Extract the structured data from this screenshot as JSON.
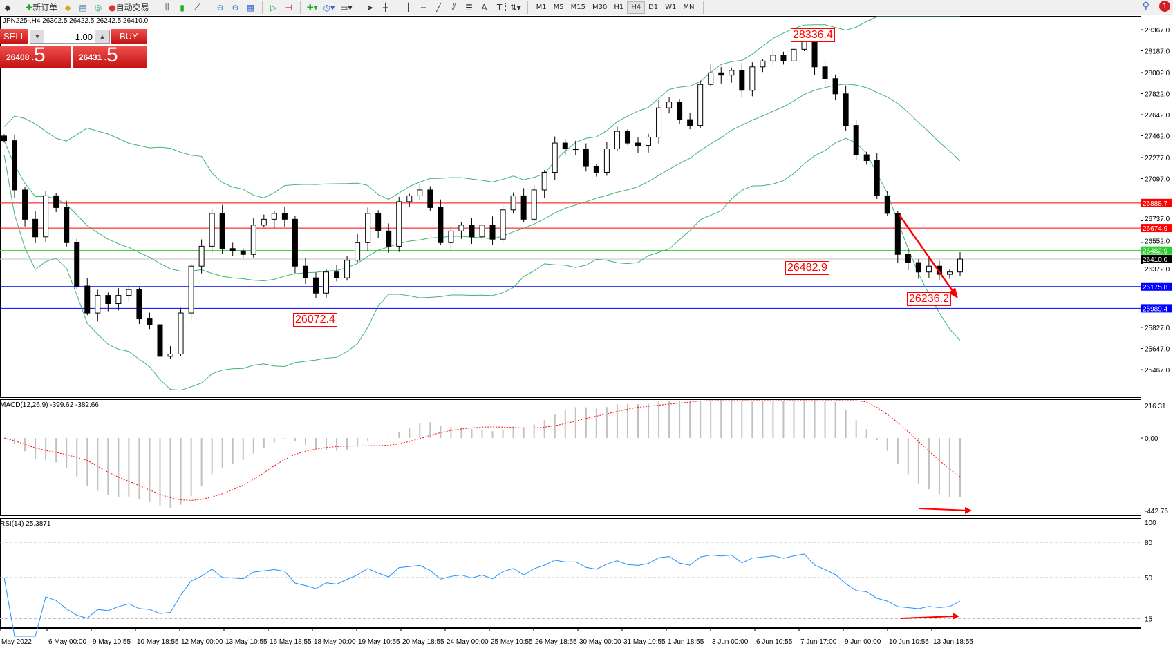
{
  "toolbar": {
    "new_order": "新订单",
    "auto_trading": "自动交易",
    "icons": [
      "new-order-icon",
      "history-icon",
      "data-icon",
      "signals-icon",
      "auto-trading-icon",
      "bar-chart-icon",
      "candlestick-icon",
      "line-chart-icon",
      "zoom-in-icon",
      "zoom-out-icon",
      "tile-icon",
      "auto-scroll-icon",
      "chart-shift-icon",
      "indicators-icon",
      "periods-icon",
      "templates-icon",
      "cursor-icon",
      "crosshair-icon",
      "vertical-line-icon",
      "horizontal-line-icon",
      "trendline-icon",
      "fibonacci-icon",
      "fibo-fan-icon",
      "text-icon",
      "label-icon",
      "arrows-icon"
    ],
    "text_tool": "A",
    "label_tool": "T",
    "timeframes": [
      "M1",
      "M5",
      "M15",
      "M30",
      "H1",
      "H4",
      "D1",
      "W1",
      "MN"
    ],
    "selected_timeframe": "H4",
    "notification_count": "1"
  },
  "chart": {
    "title": "JPN225-,H4  26302.5 26422.5 26242.5 26410.0",
    "trade": {
      "sell": "SELL",
      "buy": "BUY",
      "lot": "1.00",
      "bid_main": "26408",
      "bid_pip": "5",
      "ask_main": "26431",
      "ask_pip": "5"
    },
    "macd_label": "MACD(12,26,9) -399.62 -382.66",
    "rsi_label": "RSI(14) 25.3871",
    "annotations": [
      "28336.4",
      "26482.9",
      "26072.4",
      "26236.2"
    ],
    "colors": {
      "bands": "#3cb371",
      "resistance": "#ff0000",
      "support": "#0000ff",
      "level": "#32cd32",
      "bid": "#c0c0c0",
      "rsi": "#1e90ff",
      "macd_signal": "#ff0000",
      "macd_hist": "#c0c0c0"
    }
  },
  "chart_data": [
    {
      "type": "candlestick",
      "symbol": "JPN225-",
      "timeframe": "H4",
      "close": [
        27420,
        27000,
        26750,
        26600,
        26950,
        26850,
        26550,
        26180,
        25950,
        26100,
        26030,
        26100,
        26150,
        25900,
        25850,
        25580,
        25600,
        25950,
        26350,
        26520,
        26800,
        26500,
        26480,
        26450,
        26700,
        26750,
        26800,
        26750,
        26350,
        26250,
        26120,
        26300,
        26250,
        26400,
        26550,
        26800,
        26650,
        26520,
        26900,
        26950,
        27000,
        26850,
        26550,
        26650,
        26700,
        26600,
        26700,
        26580,
        26830,
        26950,
        26750,
        27000,
        27150,
        27400,
        27350,
        27350,
        27200,
        27150,
        27350,
        27500,
        27400,
        27380,
        27450,
        27700,
        27750,
        27600,
        27550,
        27900,
        28000,
        27980,
        28020,
        27850,
        28050,
        28100,
        28150,
        28100,
        28200,
        28280,
        28050,
        27950,
        27820,
        27550,
        27300,
        27250,
        26950,
        26800,
        26450,
        26380,
        26300,
        26350,
        26280,
        26300,
        26410
      ],
      "price_axis": [
        "28367.0",
        "28187.0",
        "28002.0",
        "27822.0",
        "27642.0",
        "27462.0",
        "27277.0",
        "27097.0",
        "26737.0",
        "26552.0",
        "26372.0",
        "25827.0",
        "25647.0",
        "25467.0"
      ],
      "ylim": [
        25467,
        28367
      ],
      "hlines": [
        {
          "value": "26888.7",
          "color": "#ff0000"
        },
        {
          "value": "26674.9",
          "color": "#ff0000"
        },
        {
          "value": "26482.9",
          "color": "#32cd32"
        },
        {
          "value": "26410.0",
          "color": "#000000"
        },
        {
          "value": "26175.8",
          "color": "#0000ff"
        },
        {
          "value": "25989.4",
          "color": "#0000ff"
        }
      ],
      "overlays": [
        "Bollinger Bands"
      ],
      "time_axis": [
        "May 2022",
        "6 May 00:00",
        "9 May 10:55",
        "10 May 18:55",
        "12 May 00:00",
        "13 May 10:55",
        "16 May 18:55",
        "18 May 00:00",
        "19 May 10:55",
        "20 May 18:55",
        "24 May 00:00",
        "25 May 10:55",
        "26 May 18:55",
        "30 May 00:00",
        "31 May 10:55",
        "1 Jun 18:55",
        "3 Jun 00:00",
        "6 Jun 10:55",
        "7 Jun 17:00",
        "9 Jun 00:00",
        "10 Jun 10:55",
        "13 Jun 18:55"
      ]
    },
    {
      "type": "bar",
      "name": "MACD(12,26,9)",
      "ylim": [
        -442.76,
        216.31
      ],
      "axis": [
        "216.31",
        "0.00",
        "-442.76"
      ]
    },
    {
      "type": "line",
      "name": "RSI(14)",
      "ylim": [
        0,
        100
      ],
      "levels": [
        80,
        50,
        15
      ],
      "axis": [
        "100",
        "80",
        "50",
        "15"
      ]
    }
  ]
}
